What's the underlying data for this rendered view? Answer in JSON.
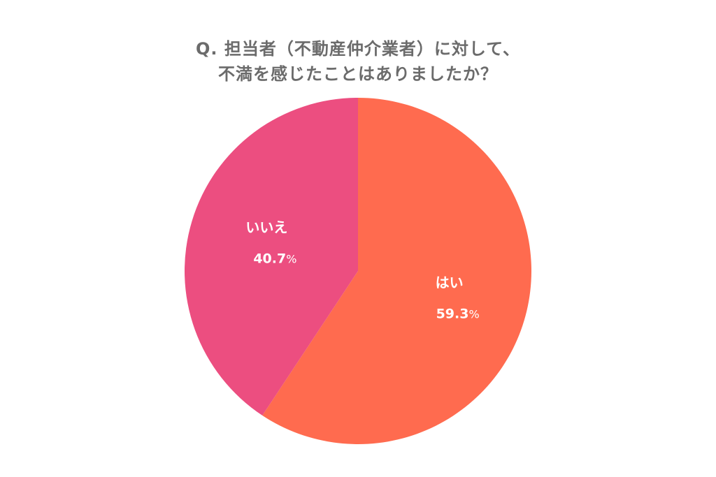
{
  "title_lines": [
    "Q. 担当者（不動産仲介業者）に対して、",
    "不満を感じたことはありましたか？"
  ],
  "chart_data": {
    "type": "pie",
    "title": "Q. 担当者（不動産仲介業者）に対して、不満を感じたことはありましたか？",
    "slices": [
      {
        "label": "はい",
        "value": 59.3,
        "display": "59.3",
        "unit": "%",
        "color": "#ff6b4f"
      },
      {
        "label": "いいえ",
        "value": 40.7,
        "display": "40.7",
        "unit": "%",
        "color": "#ec4e80"
      }
    ],
    "start": "12 o'clock",
    "direction": "clockwise",
    "legend": "none",
    "labels_inside": true
  }
}
